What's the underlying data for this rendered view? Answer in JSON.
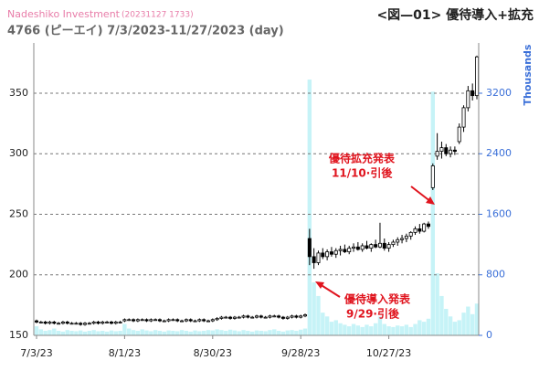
{
  "chart_data": {
    "type": "candlestick",
    "source": "Nadeshiko Investment",
    "timestamp": "(20231127 1733)",
    "subtitle": "4766 (ピーエイ) 7/3/2023-11/27/2023 (day)",
    "title": "<図—01> 優待導入+拡充",
    "y2_label": "Thousands",
    "annotations": [
      {
        "lines": [
          "優待拡充発表",
          "11/10·引後"
        ]
      },
      {
        "lines": [
          "優待導入発表",
          "9/29·引後"
        ]
      }
    ],
    "categories": [
      "7/3/23",
      null,
      null,
      null,
      null,
      null,
      null,
      null,
      null,
      null,
      null,
      null,
      null,
      null,
      null,
      null,
      null,
      null,
      null,
      null,
      "8/1/23",
      null,
      null,
      null,
      null,
      null,
      null,
      null,
      null,
      null,
      null,
      null,
      null,
      null,
      null,
      null,
      null,
      null,
      null,
      null,
      "8/30/23",
      null,
      null,
      null,
      null,
      null,
      null,
      null,
      null,
      null,
      null,
      null,
      null,
      null,
      null,
      null,
      null,
      null,
      null,
      null,
      "9/28/23",
      null,
      null,
      null,
      null,
      null,
      null,
      null,
      null,
      null,
      null,
      null,
      null,
      null,
      null,
      null,
      null,
      null,
      null,
      null,
      "10/27/23",
      null,
      null,
      null,
      null,
      null,
      null,
      null,
      null,
      null,
      null,
      null,
      null,
      null,
      null,
      null,
      null,
      null,
      null,
      null,
      null
    ],
    "open": [
      162,
      161,
      161,
      160,
      161,
      160,
      160,
      161,
      160,
      160,
      160,
      159,
      160,
      160,
      161,
      160,
      161,
      161,
      160,
      161,
      162,
      163,
      163,
      162,
      163,
      163,
      162,
      163,
      163,
      162,
      162,
      163,
      163,
      162,
      162,
      163,
      162,
      162,
      163,
      162,
      162,
      163,
      164,
      165,
      165,
      164,
      165,
      165,
      166,
      165,
      165,
      166,
      165,
      165,
      166,
      166,
      165,
      164,
      165,
      166,
      165,
      166,
      230,
      215,
      210,
      218,
      215,
      219,
      217,
      220,
      221,
      219,
      222,
      223,
      221,
      224,
      222,
      225,
      223,
      226,
      222,
      225,
      227,
      229,
      230,
      232,
      235,
      238,
      236,
      242,
      272,
      298,
      302,
      305,
      300,
      303,
      310,
      322,
      338,
      352,
      348
    ],
    "high": [
      163,
      162,
      162,
      162,
      162,
      161,
      162,
      162,
      161,
      161,
      161,
      161,
      161,
      162,
      162,
      162,
      162,
      162,
      162,
      162,
      164,
      164,
      164,
      164,
      164,
      164,
      164,
      164,
      164,
      163,
      164,
      164,
      164,
      163,
      164,
      164,
      163,
      164,
      164,
      163,
      164,
      165,
      166,
      166,
      166,
      166,
      166,
      167,
      167,
      166,
      167,
      167,
      166,
      167,
      167,
      167,
      166,
      166,
      167,
      167,
      167,
      168,
      238,
      222,
      220,
      222,
      221,
      223,
      222,
      224,
      225,
      224,
      226,
      227,
      226,
      228,
      226,
      229,
      243,
      230,
      227,
      229,
      231,
      233,
      234,
      236,
      240,
      242,
      243,
      244,
      292,
      317,
      310,
      308,
      306,
      306,
      325,
      340,
      356,
      358,
      381
    ],
    "low": [
      160,
      160,
      159,
      159,
      159,
      159,
      159,
      159,
      159,
      159,
      158,
      158,
      159,
      159,
      159,
      159,
      160,
      159,
      159,
      160,
      161,
      162,
      161,
      161,
      162,
      161,
      161,
      162,
      161,
      161,
      161,
      162,
      161,
      161,
      161,
      161,
      161,
      161,
      161,
      161,
      161,
      162,
      163,
      164,
      163,
      163,
      164,
      164,
      164,
      164,
      164,
      164,
      164,
      164,
      165,
      164,
      163,
      163,
      164,
      164,
      164,
      165,
      208,
      205,
      208,
      213,
      212,
      215,
      214,
      216,
      218,
      217,
      219,
      220,
      219,
      221,
      219,
      222,
      222,
      220,
      219,
      223,
      224,
      226,
      227,
      229,
      233,
      234,
      235,
      238,
      270,
      295,
      296,
      298,
      297,
      299,
      308,
      318,
      335,
      344,
      345
    ],
    "close": [
      161,
      161,
      160,
      161,
      160,
      160,
      161,
      160,
      160,
      160,
      159,
      160,
      160,
      161,
      160,
      161,
      161,
      160,
      161,
      161,
      163,
      163,
      162,
      163,
      163,
      162,
      163,
      163,
      162,
      162,
      163,
      163,
      162,
      162,
      163,
      162,
      162,
      163,
      162,
      162,
      163,
      164,
      165,
      165,
      164,
      165,
      165,
      166,
      165,
      165,
      166,
      165,
      165,
      166,
      166,
      165,
      164,
      165,
      166,
      165,
      166,
      167,
      215,
      210,
      218,
      215,
      219,
      217,
      220,
      221,
      219,
      222,
      223,
      221,
      224,
      222,
      225,
      223,
      226,
      222,
      225,
      227,
      229,
      230,
      232,
      235,
      238,
      236,
      242,
      240,
      290,
      302,
      305,
      300,
      303,
      302,
      322,
      338,
      352,
      348,
      380
    ],
    "volume": [
      120,
      80,
      60,
      70,
      90,
      60,
      50,
      70,
      60,
      55,
      65,
      50,
      60,
      70,
      55,
      60,
      50,
      65,
      55,
      60,
      150,
      90,
      70,
      60,
      80,
      65,
      55,
      70,
      60,
      50,
      65,
      60,
      55,
      70,
      60,
      50,
      65,
      55,
      60,
      70,
      65,
      80,
      70,
      60,
      75,
      65,
      55,
      70,
      60,
      50,
      65,
      60,
      55,
      70,
      80,
      60,
      50,
      65,
      70,
      60,
      75,
      90,
      3380,
      700,
      520,
      300,
      250,
      180,
      200,
      160,
      140,
      120,
      150,
      130,
      110,
      140,
      120,
      160,
      250,
      150,
      120,
      110,
      130,
      120,
      140,
      110,
      150,
      200,
      180,
      220,
      3220,
      820,
      520,
      350,
      250,
      180,
      200,
      300,
      380,
      280,
      420
    ],
    "up_color": "#ffffff",
    "down_color": "#000000",
    "volume_color": "#c6f3f7",
    "ylim": [
      150,
      391.5
    ],
    "yticks": [
      150,
      200,
      250,
      300,
      350
    ],
    "y2lim": [
      0,
      3864
    ],
    "y2ticks": [
      0,
      800,
      1600,
      2400,
      3200
    ],
    "grid": true
  }
}
